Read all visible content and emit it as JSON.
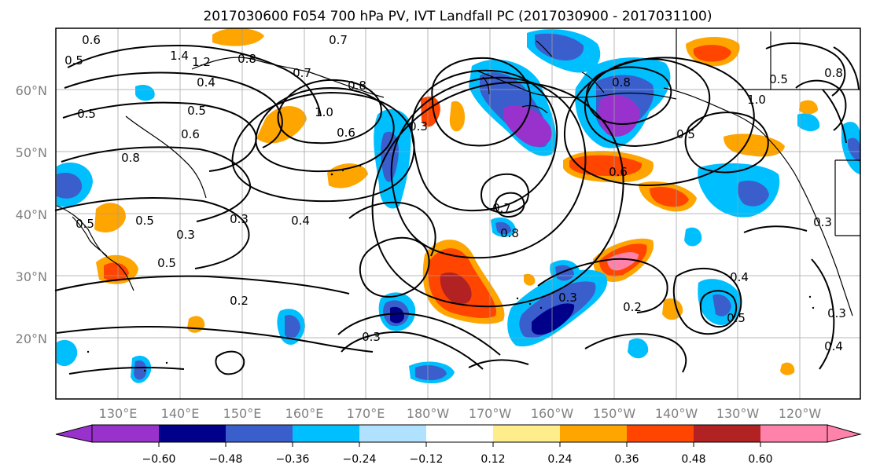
{
  "figure": {
    "title": "2017030600 F054 700 hPa PV, IVT Landfall PC (2017030900 - 2017031100)"
  },
  "map": {
    "lat_labels": [
      "60°N",
      "50°N",
      "40°N",
      "30°N",
      "20°N"
    ],
    "lon_labels": [
      "130°E",
      "140°E",
      "150°E",
      "160°E",
      "170°E",
      "180°W",
      "170°W",
      "160°W",
      "150°W",
      "140°W",
      "130°W",
      "120°W"
    ],
    "gridlines": true
  },
  "contour_labels": [
    "0.6",
    "0.5",
    "1.4",
    "1.2",
    "0.4",
    "0.8",
    "0.5",
    "1.0",
    "0.6",
    "0.7",
    "0.8",
    "0.7",
    "0.5",
    "0.6",
    "0.3",
    "0.5",
    "0.4",
    "0.5",
    "0.3",
    "0.8",
    "0.5",
    "0.2",
    "0.3",
    "0.7",
    "0.8",
    "0.3",
    "0.6",
    "0.5",
    "0.8",
    "0.8",
    "0.5",
    "1.0",
    "0.3",
    "0.3",
    "0.4",
    "0.5",
    "0.3",
    "0.2",
    "0.4"
  ],
  "colorbar": {
    "ticks": [
      "−0.60",
      "−0.48",
      "−0.36",
      "−0.24",
      "−0.12",
      "0.12",
      "0.24",
      "0.36",
      "0.48",
      "0.60"
    ],
    "colors": [
      "#9932CC",
      "#00008B",
      "#3A5FCD",
      "#00BFFF",
      "#B0E2FF",
      "#FFFFFF",
      "#FFEC8B",
      "#FFA500",
      "#FF4500",
      "#B22222",
      "#FF82AB"
    ]
  }
}
